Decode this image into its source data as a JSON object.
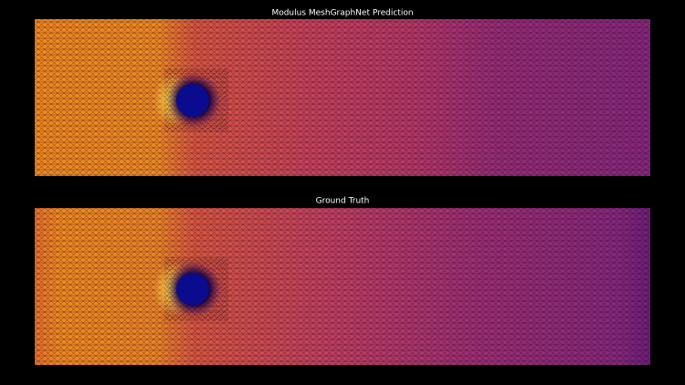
{
  "panels": [
    {
      "title": "Modulus MeshGraphNet Prediction"
    },
    {
      "title": "Ground Truth"
    }
  ]
}
